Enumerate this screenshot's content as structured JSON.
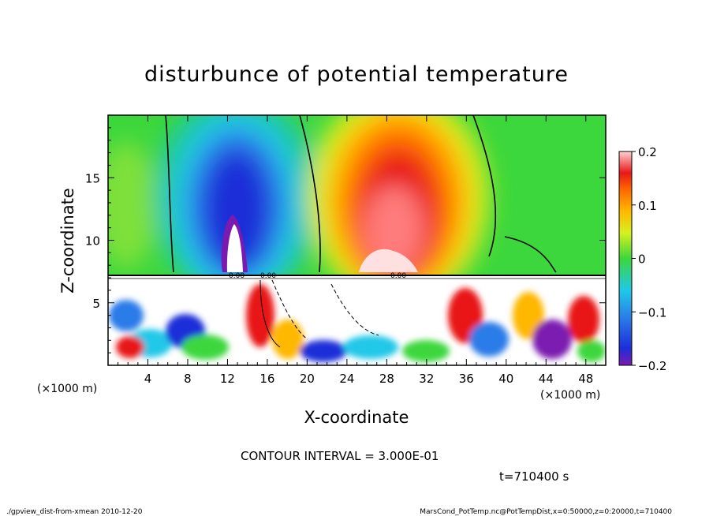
{
  "chart_data": {
    "type": "heatmap",
    "title": "disturbunce of potential temperature",
    "xlabel": "X-coordinate",
    "ylabel": "Z-coordinate",
    "x_unit_left": "(×1000 m)",
    "x_unit_right": "(×1000 m)",
    "xlim": [
      0,
      50
    ],
    "ylim": [
      0,
      20
    ],
    "x_ticks": [
      4,
      8,
      12,
      16,
      20,
      24,
      28,
      32,
      36,
      40,
      44,
      48
    ],
    "y_ticks": [
      5,
      10,
      15
    ],
    "colorbar": {
      "range": [
        -0.2,
        0.2
      ],
      "ticks": [
        {
          "value": 0.2,
          "label": "0.2"
        },
        {
          "value": 0.1,
          "label": "0.1"
        },
        {
          "value": 0,
          "label": "0"
        },
        {
          "value": -0.1,
          "label": "−0.1"
        },
        {
          "value": -0.2,
          "label": "−0.2"
        }
      ]
    },
    "contour_interval": "CONTOUR INTERVAL = 3.000E-01",
    "contour_labels": [
      "0.00",
      "0.00",
      "0.00"
    ],
    "time_label": "t=710400 s",
    "features": [
      {
        "kind": "min",
        "x": 14,
        "z": 12,
        "value": -0.2
      },
      {
        "kind": "max",
        "x": 28.5,
        "z": 11,
        "value": 0.2
      }
    ]
  },
  "footer": {
    "left": "./gpview_dist-from-xmean  2010-12-20",
    "right": "MarsCond_PotTemp.nc@PotTempDist,x=0:50000,z=0:20000,t=710400"
  }
}
